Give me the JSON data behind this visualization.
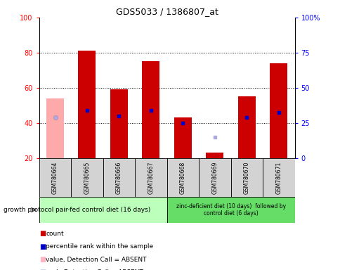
{
  "title": "GDS5033 / 1386807_at",
  "samples": [
    "GSM780664",
    "GSM780665",
    "GSM780666",
    "GSM780667",
    "GSM780668",
    "GSM780669",
    "GSM780670",
    "GSM780671"
  ],
  "count_values": [
    null,
    81,
    59,
    75,
    43,
    23,
    55,
    74
  ],
  "count_absent": [
    54,
    null,
    null,
    null,
    null,
    null,
    null,
    null
  ],
  "percentile_values": [
    43,
    47,
    44,
    47,
    40,
    null,
    43,
    46
  ],
  "percentile_absent": [
    43,
    null,
    null,
    null,
    null,
    32,
    null,
    null
  ],
  "bar_bottom": 20,
  "ylim": [
    20,
    100
  ],
  "yticks_left": [
    20,
    40,
    60,
    80,
    100
  ],
  "yticks_right": [
    0,
    25,
    50,
    75,
    100
  ],
  "ytick_labels_right": [
    "0",
    "25",
    "50",
    "75",
    "100%"
  ],
  "group1_label": "pair-fed control diet (16 days)",
  "group2_label": "zinc-deficient diet (10 days)  followed by\ncontrol diet (6 days)",
  "growth_protocol_label": "growth protocol",
  "bar_color_present": "#cc0000",
  "bar_color_absent": "#ffaaaa",
  "dot_color_present": "#0000cc",
  "dot_color_absent": "#aaaadd",
  "group1_bg": "#bbffbb",
  "group2_bg": "#66dd66",
  "sample_bg": "#d3d3d3",
  "bar_width": 0.55,
  "legend_colors": [
    "#cc0000",
    "#0000cc",
    "#ffb6c1",
    "#b0c4de"
  ],
  "legend_labels": [
    "count",
    "percentile rank within the sample",
    "value, Detection Call = ABSENT",
    "rank, Detection Call = ABSENT"
  ]
}
